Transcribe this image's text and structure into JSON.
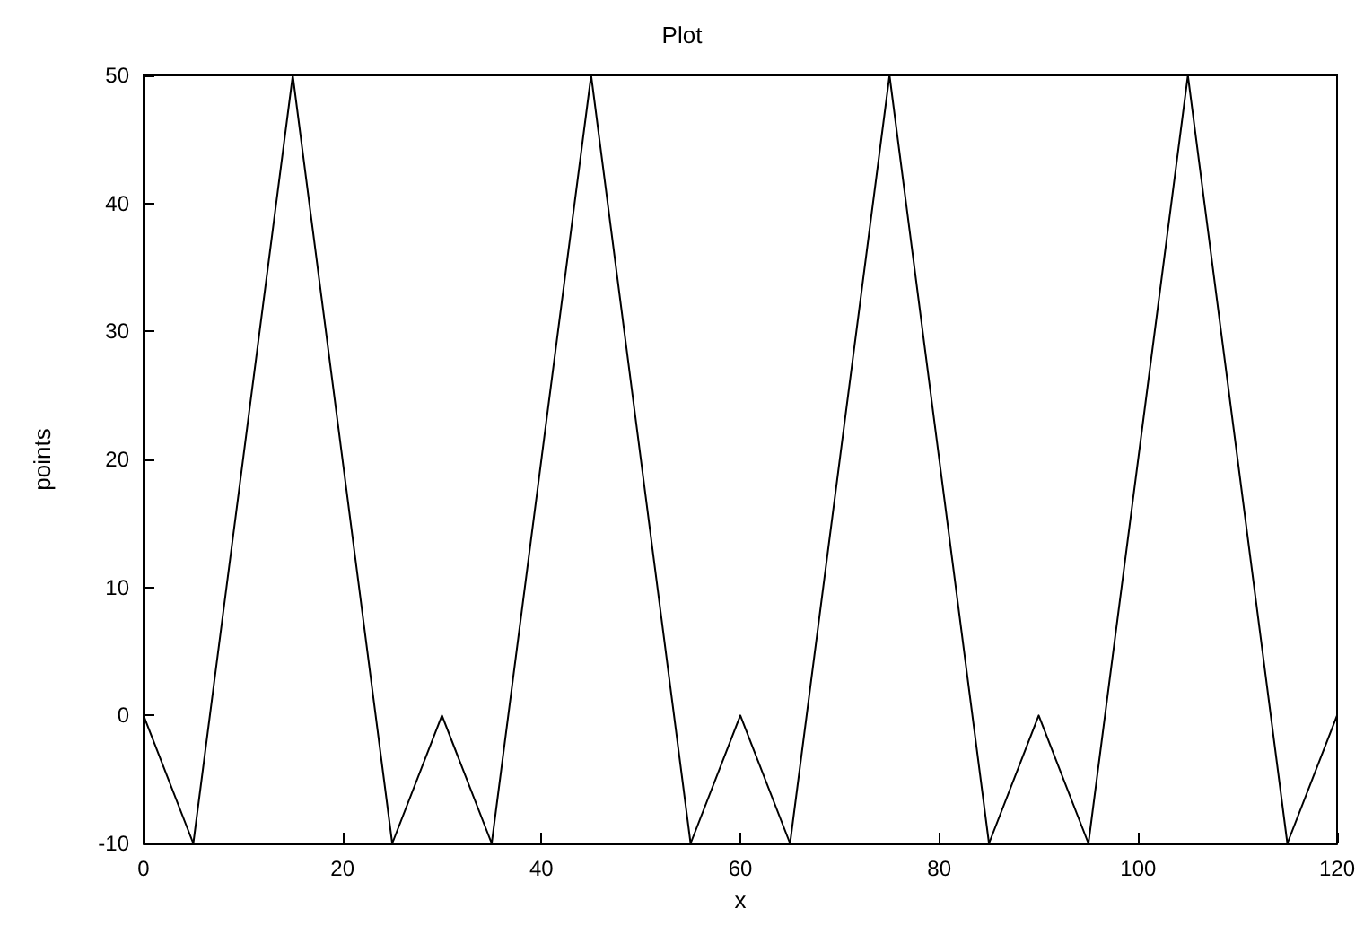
{
  "chart_data": {
    "type": "line",
    "title": "Plot",
    "xlabel": "x",
    "ylabel": "points",
    "x": [
      0,
      5,
      15,
      25,
      30,
      35,
      45,
      55,
      60,
      65,
      75,
      85,
      90,
      95,
      105,
      115,
      120
    ],
    "series": [
      {
        "color": "#000000",
        "values": [
          0,
          -10,
          50,
          -10,
          0,
          -10,
          50,
          -10,
          0,
          -10,
          50,
          -10,
          0,
          -10,
          50,
          -10,
          0
        ]
      }
    ],
    "xlim": [
      0,
      120
    ],
    "xticks": [
      0,
      20,
      40,
      60,
      80,
      100,
      120
    ],
    "ylim": [
      -10,
      50
    ],
    "yticks": [
      -10,
      0,
      10,
      20,
      30,
      40,
      50
    ],
    "grid": false,
    "marker": "none",
    "line_style": "solid"
  }
}
